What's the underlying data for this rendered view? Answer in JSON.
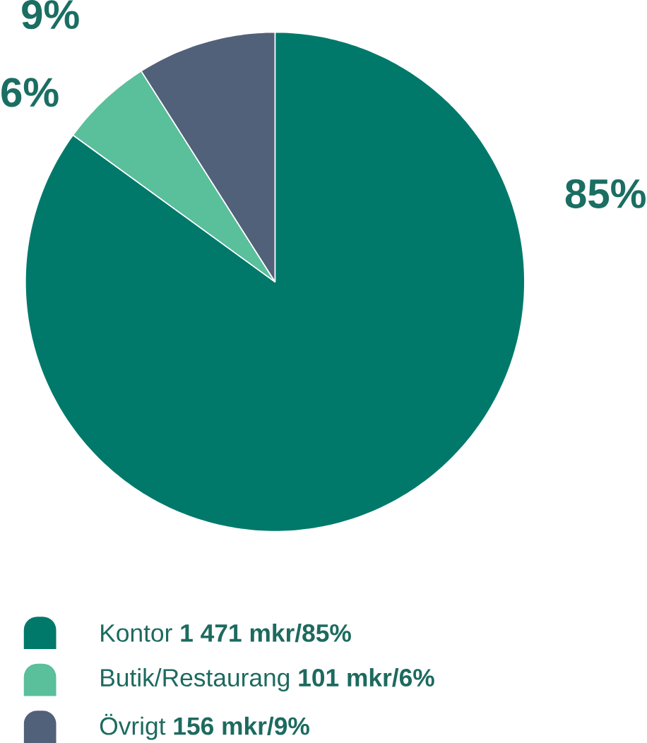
{
  "chart_data": {
    "type": "pie",
    "categories": [
      "Kontor **1 471 mkr/85%**",
      "Butik/Restaurang **101 mkr/6%**",
      "Övrigt **156 mkr/9%**"
    ],
    "values": [
      85,
      6,
      9
    ],
    "colors": [
      "#00796b",
      "#5abf9b",
      "#52617a"
    ],
    "value_labels": [
      "85%",
      "6%",
      "9%"
    ],
    "legend": "bottom"
  }
}
